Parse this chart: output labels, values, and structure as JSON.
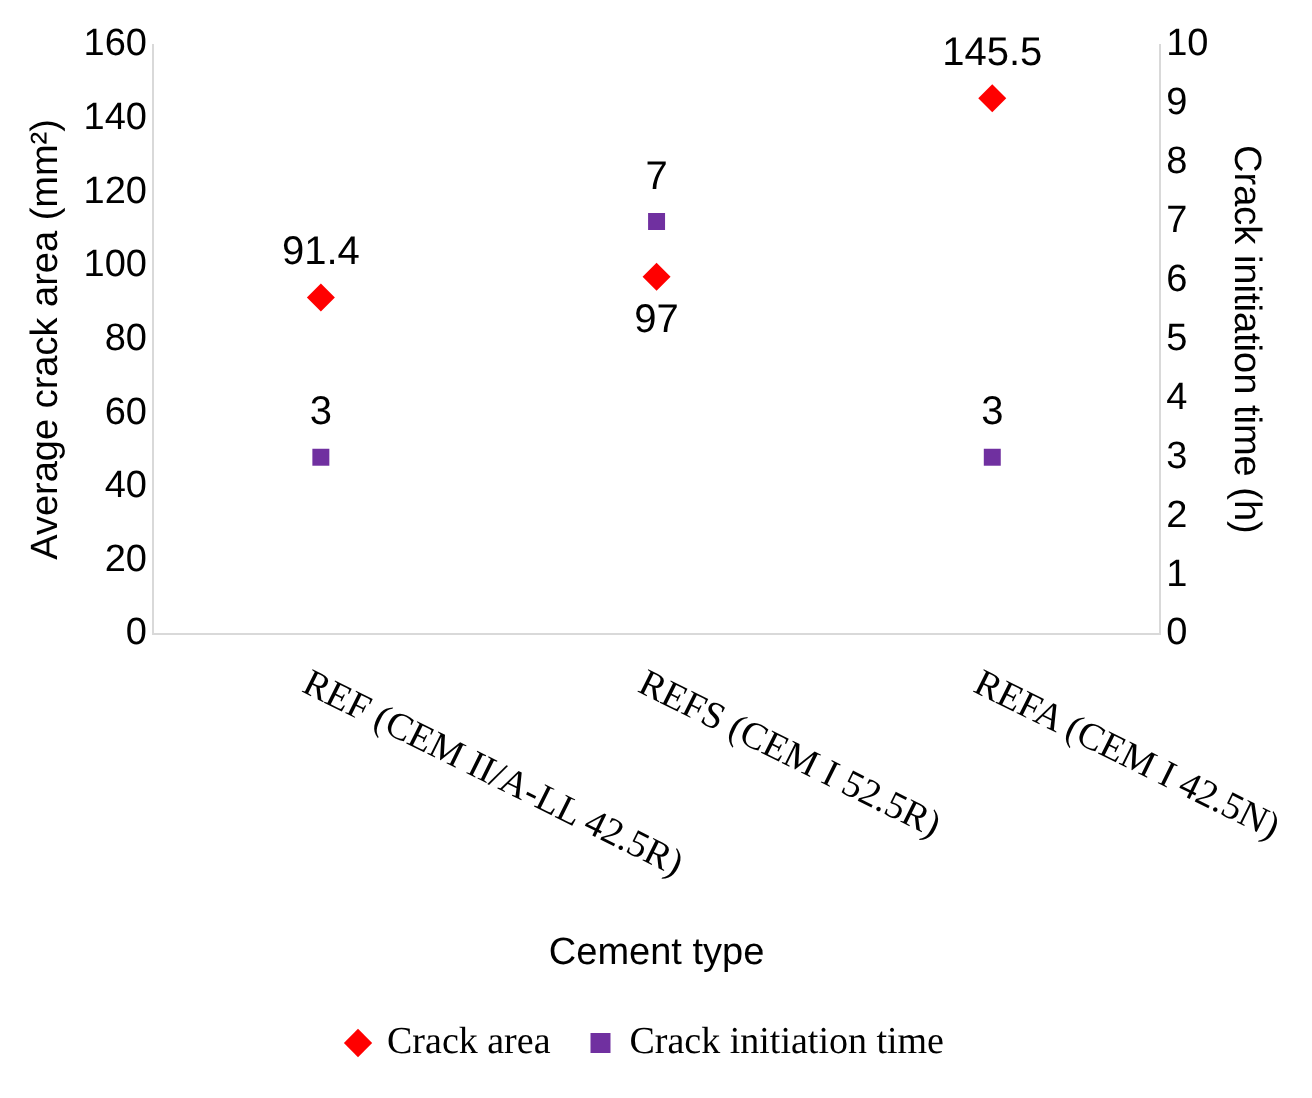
{
  "chart_data": {
    "type": "scatter",
    "xlabel": "Cement type",
    "ylabel": "Average crack area (mm²)",
    "y2label": "Crack initiation time (h)",
    "categories": [
      "REF (CEM II/A-LL 42.5R)",
      "REFS (CEM I 52.5R)",
      "REFA (CEM I 42.5N)"
    ],
    "series": [
      {
        "name": "Crack area",
        "color": "#ff0000",
        "values": [
          91.4,
          97,
          145.5
        ],
        "marker": "diamond"
      },
      {
        "name": "Crack initiation time",
        "color": "#7030a0",
        "values": [
          3,
          7,
          3
        ],
        "marker": "square",
        "axis": "y2"
      }
    ],
    "ylim": [
      0,
      160
    ],
    "yticks": [
      0,
      20,
      40,
      60,
      80,
      100,
      120,
      140,
      160
    ],
    "y2lim": [
      0,
      10
    ],
    "y2ticks": [
      0,
      1,
      2,
      3,
      4,
      5,
      6,
      7,
      8,
      9,
      10
    ],
    "data_labels": true,
    "legend": "bottom",
    "grid": false
  }
}
